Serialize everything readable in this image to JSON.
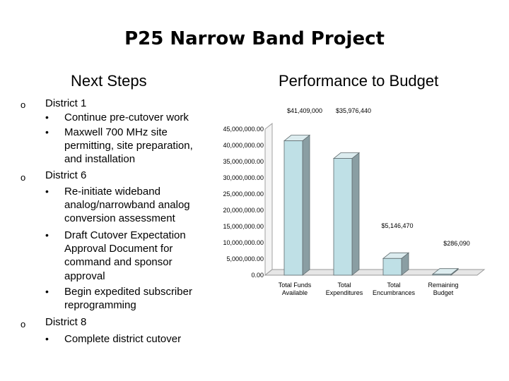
{
  "title": "P25 Narrow Band Project",
  "left_heading": "Next Steps",
  "right_heading": "Performance to Budget",
  "steps": [
    {
      "marker": "o",
      "label": "District 1",
      "items": [
        {
          "marker": "•",
          "text": "Continue pre-cutover work"
        },
        {
          "marker": "•",
          "text": "Maxwell 700 MHz site permitting, site preparation, and installation"
        }
      ]
    },
    {
      "marker": "o",
      "label": "District 6",
      "items": [
        {
          "marker": "•",
          "text": "Re-initiate wideband analog/narrowband analog conversion assessment"
        },
        {
          "marker": "•",
          "text": "Draft Cutover Expectation Approval Document for command and sponsor approval"
        },
        {
          "marker": "•",
          "text": "Begin expedited subscriber reprogramming"
        }
      ]
    },
    {
      "marker": "o",
      "label": "District 8",
      "items": [
        {
          "marker": "•",
          "text": "Complete district cutover"
        }
      ]
    }
  ],
  "chart_data": {
    "type": "bar",
    "title": "Performance to Budget",
    "categories": [
      [
        "Total Funds",
        "Available"
      ],
      [
        "Total",
        "Expenditures"
      ],
      [
        "Total",
        "Encumbrances"
      ],
      [
        "Remaining",
        "Budget"
      ]
    ],
    "values": [
      41409000,
      35976440,
      5146470,
      286090
    ],
    "data_labels": [
      "$41,409,000",
      "$35,976,440",
      "$5,146,470",
      "$286,090"
    ],
    "y_ticks": [
      0,
      5000000,
      10000000,
      15000000,
      20000000,
      25000000,
      30000000,
      35000000,
      40000000,
      45000000
    ],
    "y_tick_labels": [
      "0.00",
      "5,000,000.00",
      "10,000,000.00",
      "15,000,000.00",
      "20,000,000.00",
      "25,000,000.00",
      "30,000,000.00",
      "35,000,000.00",
      "40,000,000.00",
      "45,000,000.00"
    ],
    "ylim": [
      0,
      45000000
    ],
    "grid": false,
    "legend": false,
    "style": "3d",
    "colors": {
      "bar_front": "#bfe0e6",
      "bar_side": "#8a9ea3",
      "bar_top": "#dcecef",
      "outline": "#5f6b6e",
      "floor": "#9a9a9a"
    }
  }
}
